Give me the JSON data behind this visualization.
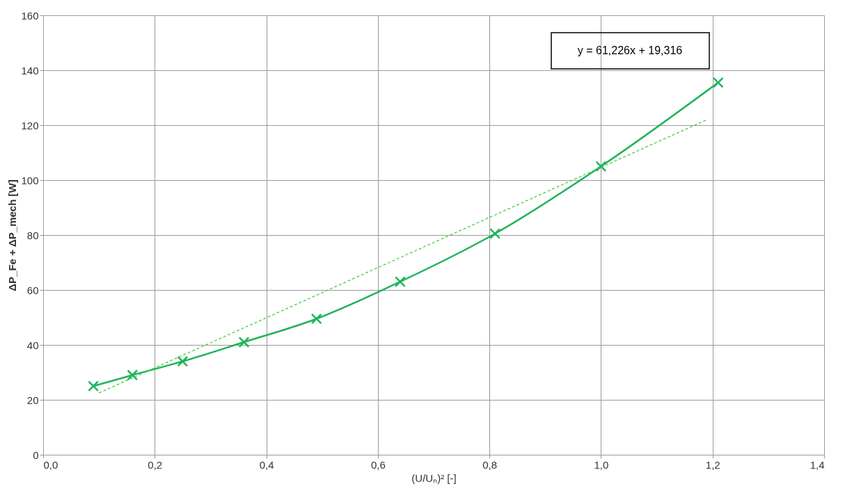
{
  "chart_data": {
    "type": "line",
    "xlabel": "(U/Uₙ)² [-]",
    "ylabel": "ΔP_Fe + ΔP_mech [W]",
    "annotations": [
      "y = 61,226x + 19,316"
    ],
    "xlim": [
      0,
      1.4
    ],
    "xticks": [
      {
        "value": 0,
        "label": "0,0"
      },
      {
        "value": 0.2,
        "label": "0,2"
      },
      {
        "value": 0.4,
        "label": "0,4"
      },
      {
        "value": 0.6,
        "label": "0,6"
      },
      {
        "value": 0.8,
        "label": "0,8"
      },
      {
        "value": 1.0,
        "label": "1,0"
      },
      {
        "value": 1.2,
        "label": "1,2"
      },
      {
        "value": 1.4,
        "label": "1,4"
      }
    ],
    "ylim": [
      0,
      160
    ],
    "yticks": [
      0,
      20,
      40,
      60,
      80,
      100,
      120,
      140,
      160
    ],
    "grid": true,
    "series": [
      {
        "color": "#1fb35a",
        "marker": "cross",
        "line_style": "solid",
        "x": [
          0.09,
          0.16,
          0.25,
          0.36,
          0.49,
          0.64,
          0.81,
          1.0,
          1.21
        ],
        "values": [
          25,
          29,
          34,
          41,
          49.5,
          63,
          80.5,
          105,
          135.5
        ]
      },
      {
        "color": "#33cc33",
        "marker": "none",
        "line_style": "dashed",
        "x": [
          0.1,
          1.19
        ],
        "values": [
          22.5,
          122
        ]
      }
    ]
  }
}
